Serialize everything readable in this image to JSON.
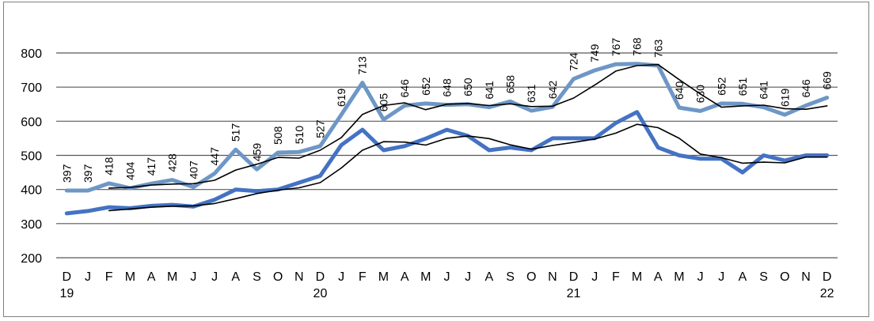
{
  "chart_data": {
    "type": "line",
    "categories": [
      "D",
      "J",
      "F",
      "M",
      "A",
      "M",
      "J",
      "J",
      "A",
      "S",
      "O",
      "N",
      "D",
      "J",
      "F",
      "M",
      "A",
      "M",
      "J",
      "J",
      "A",
      "S",
      "O",
      "N",
      "D",
      "J",
      "F",
      "M",
      "A",
      "M",
      "J",
      "J",
      "A",
      "S",
      "O",
      "N",
      "D"
    ],
    "year_labels": [
      {
        "index": 0,
        "label": "19"
      },
      {
        "index": 12,
        "label": "20"
      },
      {
        "index": 24,
        "label": "21"
      },
      {
        "index": 36,
        "label": "22"
      }
    ],
    "ylim": [
      200,
      800
    ],
    "yticks": [
      200,
      300,
      400,
      500,
      600,
      700,
      800
    ],
    "grid": true,
    "colors": {
      "series_light": "#6e97c6",
      "series_dark": "#4472c4",
      "moving_avg": "#000000",
      "grid": "#595959",
      "text": "#000000"
    },
    "series": [
      {
        "style": "light",
        "labeled": true,
        "values": [
          397,
          397,
          418,
          404,
          417,
          428,
          407,
          447,
          517,
          459,
          508,
          510,
          527,
          619,
          713,
          605,
          646,
          652,
          648,
          650,
          641,
          658,
          631,
          642,
          724,
          749,
          767,
          768,
          763,
          640,
          630,
          652,
          651,
          641,
          619,
          646,
          669
        ]
      },
      {
        "style": "dark",
        "labeled": false,
        "values": [
          330,
          337,
          348,
          345,
          352,
          355,
          350,
          370,
          400,
          395,
          400,
          420,
          440,
          530,
          575,
          515,
          527,
          549,
          575,
          557,
          515,
          523,
          515,
          550,
          550,
          550,
          595,
          627,
          523,
          500,
          490,
          490,
          450,
          500,
          485,
          500,
          500
        ]
      },
      {
        "style": "avg_light",
        "labeled": false,
        "values": [
          null,
          null,
          404,
          406,
          413,
          416,
          417,
          427,
          457,
          474,
          494,
          492,
          515,
          552,
          620,
          646,
          654,
          634,
          650,
          652,
          646,
          651,
          643,
          644,
          668,
          706,
          747,
          763,
          766,
          722,
          680,
          641,
          645,
          647,
          637,
          635,
          645
        ]
      },
      {
        "style": "avg_dark",
        "labeled": false,
        "values": [
          null,
          null,
          338,
          343,
          348,
          351,
          352,
          359,
          373,
          388,
          398,
          405,
          420,
          463,
          515,
          540,
          539,
          530,
          550,
          557,
          549,
          531,
          518,
          529,
          538,
          548,
          565,
          591,
          581,
          550,
          504,
          493,
          477,
          480,
          478,
          495,
          495
        ]
      }
    ]
  }
}
